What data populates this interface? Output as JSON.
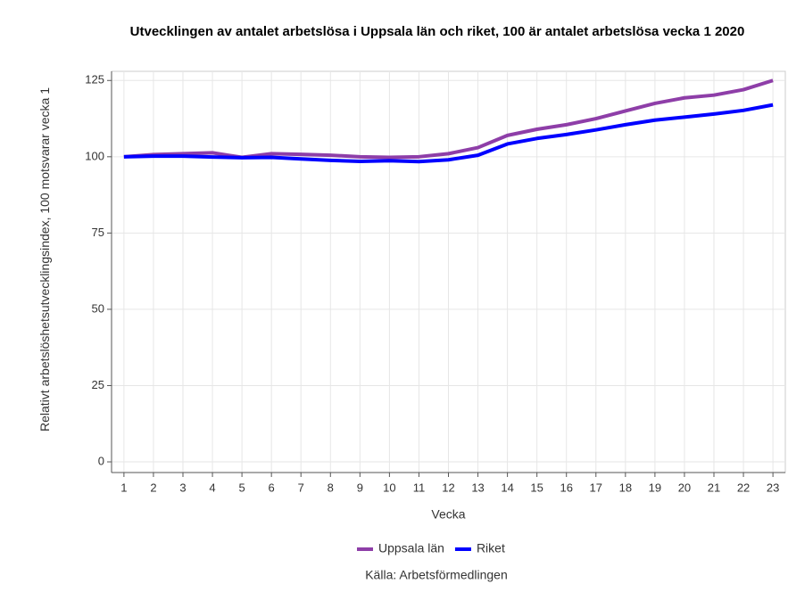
{
  "chart_data": {
    "type": "line",
    "title": "Utvecklingen av antalet arbetslösa i Uppsala län och riket, 100 är antalet arbetslösa vecka 1 2020",
    "x_label": "Vecka",
    "y_label": "Relativt arbetslöshetsutvecklingsindex, 100 motsvarar vecka 1",
    "source": "Källa: Arbetsförmedlingen",
    "x": [
      1,
      2,
      3,
      4,
      5,
      6,
      7,
      8,
      9,
      10,
      11,
      12,
      13,
      14,
      15,
      16,
      17,
      18,
      19,
      20,
      21,
      22,
      23
    ],
    "xlim": [
      0.58,
      23.42
    ],
    "xticks": [
      1,
      2,
      3,
      4,
      5,
      6,
      7,
      8,
      9,
      10,
      11,
      12,
      13,
      14,
      15,
      16,
      17,
      18,
      19,
      20,
      21,
      22,
      23
    ],
    "ylim": [
      -3.5,
      128
    ],
    "yticks": [
      0,
      25,
      50,
      75,
      100,
      125
    ],
    "grid": true,
    "legend": "bottom",
    "series": [
      {
        "name": "Uppsala län",
        "color": "#8e3ea8",
        "values": [
          100,
          100.7,
          101,
          101.3,
          99.8,
          101,
          100.8,
          100.5,
          100,
          99.8,
          100,
          101,
          103,
          107,
          109,
          110.5,
          112.5,
          115,
          117.5,
          119.3,
          120.2,
          122,
          125
        ]
      },
      {
        "name": "Riket",
        "color": "#0000ff",
        "values": [
          100,
          100.2,
          100.2,
          99.9,
          99.7,
          99.8,
          99.3,
          98.8,
          98.5,
          98.7,
          98.4,
          99,
          100.5,
          104.2,
          106,
          107.3,
          108.8,
          110.5,
          112,
          113,
          114,
          115.2,
          117
        ]
      }
    ]
  }
}
